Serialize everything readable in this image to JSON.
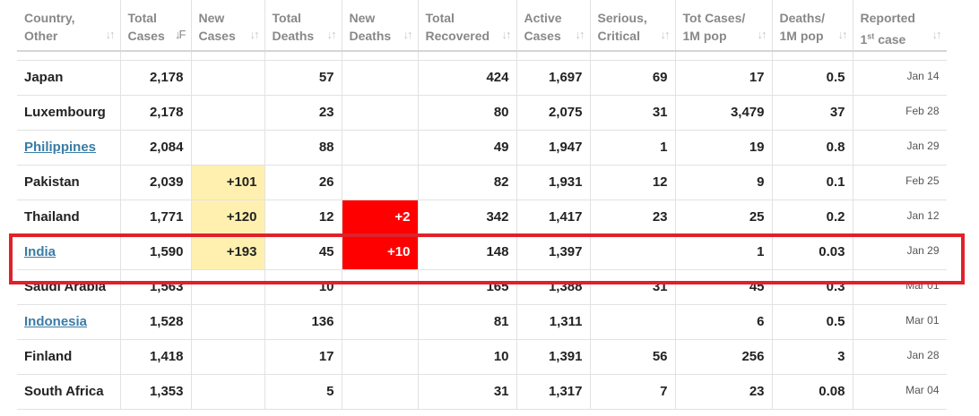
{
  "headers": [
    {
      "line1": "Country,",
      "line2": "Other",
      "sort_active": false
    },
    {
      "line1": "Total",
      "line2": "Cases",
      "sort_active": true
    },
    {
      "line1": "New",
      "line2": "Cases",
      "sort_active": false
    },
    {
      "line1": "Total",
      "line2": "Deaths",
      "sort_active": false
    },
    {
      "line1": "New",
      "line2": "Deaths",
      "sort_active": false
    },
    {
      "line1": "Total",
      "line2": "Recovered",
      "sort_active": false
    },
    {
      "line1": "Active",
      "line2": "Cases",
      "sort_active": false
    },
    {
      "line1": "Serious,",
      "line2": "Critical",
      "sort_active": false
    },
    {
      "line1": "Tot Cases/",
      "line2": "1M pop",
      "sort_active": false
    },
    {
      "line1": "Deaths/",
      "line2": "1M pop",
      "sort_active": false
    },
    {
      "line1": "Reported",
      "line2_pre": "1",
      "line2_sup": "st",
      "line2": " case",
      "sort_active": false
    }
  ],
  "sort_icon": "↓↑",
  "sort_icon_active": "↓F",
  "rows": [
    {
      "country": "Japan",
      "link": false,
      "total_cases": "2,178",
      "new_cases": "",
      "total_deaths": "57",
      "new_deaths": "",
      "total_recovered": "424",
      "active_cases": "1,697",
      "serious": "69",
      "cases_per_1m": "17",
      "deaths_per_1m": "0.5",
      "first_case": "Jan 14"
    },
    {
      "country": "Luxembourg",
      "link": false,
      "total_cases": "2,178",
      "new_cases": "",
      "total_deaths": "23",
      "new_deaths": "",
      "total_recovered": "80",
      "active_cases": "2,075",
      "serious": "31",
      "cases_per_1m": "3,479",
      "deaths_per_1m": "37",
      "first_case": "Feb 28"
    },
    {
      "country": "Philippines",
      "link": true,
      "total_cases": "2,084",
      "new_cases": "",
      "total_deaths": "88",
      "new_deaths": "",
      "total_recovered": "49",
      "active_cases": "1,947",
      "serious": "1",
      "cases_per_1m": "19",
      "deaths_per_1m": "0.8",
      "first_case": "Jan 29"
    },
    {
      "country": "Pakistan",
      "link": false,
      "total_cases": "2,039",
      "new_cases": "+101",
      "total_deaths": "26",
      "new_deaths": "",
      "total_recovered": "82",
      "active_cases": "1,931",
      "serious": "12",
      "cases_per_1m": "9",
      "deaths_per_1m": "0.1",
      "first_case": "Feb 25"
    },
    {
      "country": "Thailand",
      "link": false,
      "total_cases": "1,771",
      "new_cases": "+120",
      "total_deaths": "12",
      "new_deaths": "+2",
      "total_recovered": "342",
      "active_cases": "1,417",
      "serious": "23",
      "cases_per_1m": "25",
      "deaths_per_1m": "0.2",
      "first_case": "Jan 12"
    },
    {
      "country": "India",
      "link": true,
      "total_cases": "1,590",
      "new_cases": "+193",
      "total_deaths": "45",
      "new_deaths": "+10",
      "total_recovered": "148",
      "active_cases": "1,397",
      "serious": "",
      "cases_per_1m": "1",
      "deaths_per_1m": "0.03",
      "first_case": "Jan 29"
    },
    {
      "country": "Saudi Arabia",
      "link": false,
      "total_cases": "1,563",
      "new_cases": "",
      "total_deaths": "10",
      "new_deaths": "",
      "total_recovered": "165",
      "active_cases": "1,388",
      "serious": "31",
      "cases_per_1m": "45",
      "deaths_per_1m": "0.3",
      "first_case": "Mar 01"
    },
    {
      "country": "Indonesia",
      "link": true,
      "total_cases": "1,528",
      "new_cases": "",
      "total_deaths": "136",
      "new_deaths": "",
      "total_recovered": "81",
      "active_cases": "1,311",
      "serious": "",
      "cases_per_1m": "6",
      "deaths_per_1m": "0.5",
      "first_case": "Mar 01"
    },
    {
      "country": "Finland",
      "link": false,
      "total_cases": "1,418",
      "new_cases": "",
      "total_deaths": "17",
      "new_deaths": "",
      "total_recovered": "10",
      "active_cases": "1,391",
      "serious": "56",
      "cases_per_1m": "256",
      "deaths_per_1m": "3",
      "first_case": "Jan 28"
    },
    {
      "country": "South Africa",
      "link": false,
      "total_cases": "1,353",
      "new_cases": "",
      "total_deaths": "5",
      "new_deaths": "",
      "total_recovered": "31",
      "active_cases": "1,317",
      "serious": "7",
      "cases_per_1m": "23",
      "deaths_per_1m": "0.08",
      "first_case": "Mar 04"
    }
  ],
  "highlighted_country": "India",
  "colors": {
    "new_cases_bg": "#fff0b0",
    "new_deaths_bg": "#ff0000",
    "highlight_border": "#e0212a",
    "link": "#3a7ca5"
  }
}
